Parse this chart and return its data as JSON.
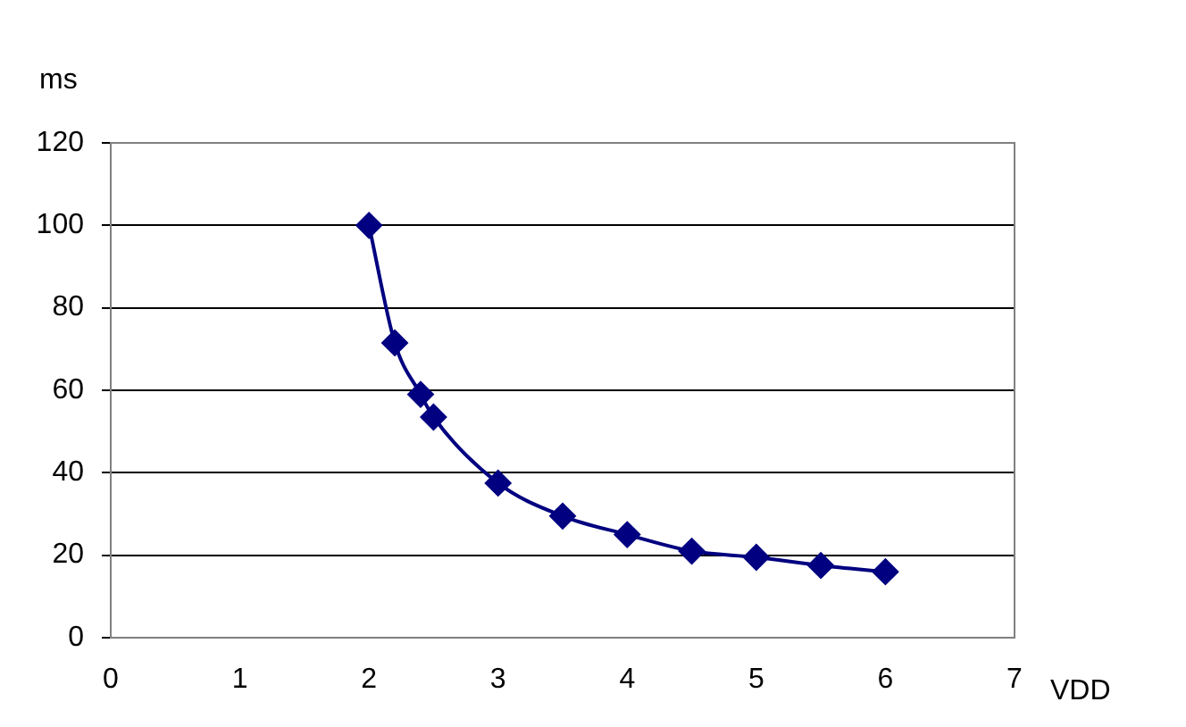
{
  "chart_data": {
    "type": "line",
    "xlabel": "VDD",
    "ylabel": "ms",
    "x": [
      2,
      2.2,
      2.4,
      2.5,
      3,
      3.5,
      4,
      4.5,
      5,
      5.5,
      6
    ],
    "series": [
      {
        "color": "#000080",
        "values": [
          100,
          71.5,
          59,
          53.5,
          37.5,
          29.5,
          25,
          21,
          19.5,
          17.5,
          16
        ]
      }
    ],
    "xlim": [
      0,
      7
    ],
    "xticks": [
      0,
      1,
      2,
      3,
      4,
      5,
      6,
      7
    ],
    "ylim": [
      0,
      120
    ],
    "yticks": [
      0,
      20,
      40,
      60,
      80,
      100,
      120
    ],
    "grid": "y",
    "legend": false,
    "marker": "diamond",
    "line_style": "solid"
  }
}
